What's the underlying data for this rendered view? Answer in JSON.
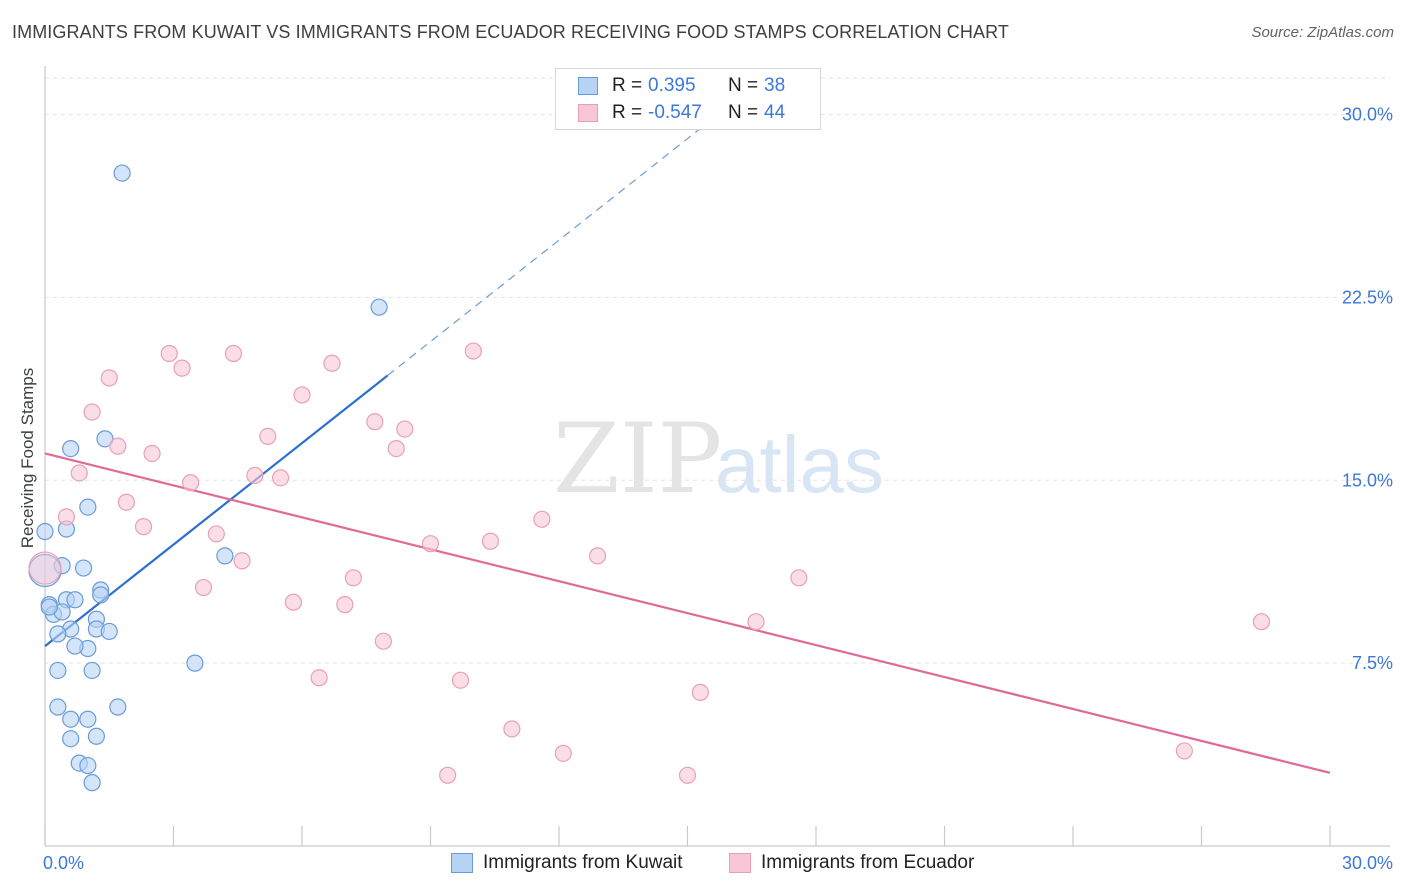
{
  "header": {
    "title": "IMMIGRANTS FROM KUWAIT VS IMMIGRANTS FROM ECUADOR RECEIVING FOOD STAMPS CORRELATION CHART",
    "source": "Source: ZipAtlas.com"
  },
  "watermark": {
    "zip": "ZIP",
    "atlas": "atlas"
  },
  "stats_legend": [
    {
      "r_label": "R =",
      "r_value": "0.395",
      "n_label": "N =",
      "n_value": "38"
    },
    {
      "r_label": "R =",
      "r_value": "-0.547",
      "n_label": "N =",
      "n_value": "44"
    }
  ],
  "colors": {
    "kuwait_fill": "#b8d4f5",
    "kuwait_stroke": "#6a9bd8",
    "kuwait_line": "#2c6fd1",
    "ecuador_fill": "#f8c6d5",
    "ecuador_stroke": "#e8a0b8",
    "ecuador_line": "#e06a96",
    "tick_label": "#3c78d8",
    "grid": "#e3e3e3"
  },
  "chart_data": {
    "type": "scatter",
    "title": "IMMIGRANTS FROM KUWAIT VS IMMIGRANTS FROM ECUADOR RECEIVING FOOD STAMPS CORRELATION CHART",
    "xlabel": "",
    "ylabel": "Receiving Food Stamps",
    "xlim": [
      0,
      30
    ],
    "ylim": [
      0,
      31.5
    ],
    "x_tick_labels": [
      "0.0%",
      "30.0%"
    ],
    "y_ticks": [
      7.5,
      15.0,
      22.5,
      30.0
    ],
    "y_tick_labels": [
      "7.5%",
      "15.0%",
      "22.5%",
      "30.0%"
    ],
    "legend_position": "bottom",
    "series": [
      {
        "name": "Immigrants from Kuwait",
        "points": [
          [
            1.8,
            27.6
          ],
          [
            7.8,
            22.1
          ],
          [
            0.6,
            16.3
          ],
          [
            1.4,
            16.7
          ],
          [
            1.0,
            13.9
          ],
          [
            0.5,
            13.0
          ],
          [
            0.0,
            12.9
          ],
          [
            0.4,
            11.5
          ],
          [
            0.9,
            11.4
          ],
          [
            4.2,
            11.9
          ],
          [
            1.3,
            10.5
          ],
          [
            0.1,
            9.9
          ],
          [
            0.5,
            10.1
          ],
          [
            0.7,
            10.1
          ],
          [
            1.3,
            10.3
          ],
          [
            0.2,
            9.5
          ],
          [
            0.4,
            9.6
          ],
          [
            1.2,
            9.3
          ],
          [
            1.2,
            8.9
          ],
          [
            0.6,
            8.9
          ],
          [
            1.5,
            8.8
          ],
          [
            0.3,
            8.7
          ],
          [
            1.0,
            8.1
          ],
          [
            0.7,
            8.2
          ],
          [
            3.5,
            7.5
          ],
          [
            0.3,
            7.2
          ],
          [
            1.1,
            7.2
          ],
          [
            0.3,
            5.7
          ],
          [
            1.7,
            5.7
          ],
          [
            0.6,
            5.2
          ],
          [
            1.0,
            5.2
          ],
          [
            1.2,
            4.5
          ],
          [
            0.6,
            4.4
          ],
          [
            0.8,
            3.4
          ],
          [
            1.0,
            3.3
          ],
          [
            1.1,
            2.6
          ],
          [
            0.0,
            11.3
          ],
          [
            0.1,
            9.8
          ]
        ]
      },
      {
        "name": "Immigrants from Ecuador",
        "points": [
          [
            0.0,
            11.4
          ],
          [
            2.9,
            20.2
          ],
          [
            4.4,
            20.2
          ],
          [
            3.2,
            19.6
          ],
          [
            1.5,
            19.2
          ],
          [
            6.7,
            19.8
          ],
          [
            10.0,
            20.3
          ],
          [
            6.0,
            18.5
          ],
          [
            1.1,
            17.8
          ],
          [
            7.7,
            17.4
          ],
          [
            8.4,
            17.1
          ],
          [
            5.2,
            16.8
          ],
          [
            8.2,
            16.3
          ],
          [
            1.7,
            16.4
          ],
          [
            2.5,
            16.1
          ],
          [
            0.8,
            15.3
          ],
          [
            4.9,
            15.2
          ],
          [
            5.5,
            15.1
          ],
          [
            3.4,
            14.9
          ],
          [
            1.9,
            14.1
          ],
          [
            0.5,
            13.5
          ],
          [
            2.3,
            13.1
          ],
          [
            4.0,
            12.8
          ],
          [
            11.6,
            13.4
          ],
          [
            9.0,
            12.4
          ],
          [
            10.4,
            12.5
          ],
          [
            12.9,
            11.9
          ],
          [
            4.6,
            11.7
          ],
          [
            7.2,
            11.0
          ],
          [
            17.6,
            11.0
          ],
          [
            3.7,
            10.6
          ],
          [
            5.8,
            10.0
          ],
          [
            7.0,
            9.9
          ],
          [
            16.6,
            9.2
          ],
          [
            28.4,
            9.2
          ],
          [
            7.9,
            8.4
          ],
          [
            6.4,
            6.9
          ],
          [
            9.7,
            6.8
          ],
          [
            15.3,
            6.3
          ],
          [
            10.9,
            4.8
          ],
          [
            12.1,
            3.8
          ],
          [
            9.4,
            2.9
          ],
          [
            15.0,
            2.9
          ],
          [
            26.6,
            3.9
          ]
        ]
      }
    ],
    "trend_lines": [
      {
        "series": "Immigrants from Kuwait",
        "x0": 0.0,
        "y0": 8.2,
        "x1": 8.0,
        "y1": 19.3,
        "dashed_extension_to_x": 16.0
      },
      {
        "series": "Immigrants from Ecuador",
        "x0": 0.0,
        "y0": 16.1,
        "x1": 30.0,
        "y1": 3.0
      }
    ]
  }
}
